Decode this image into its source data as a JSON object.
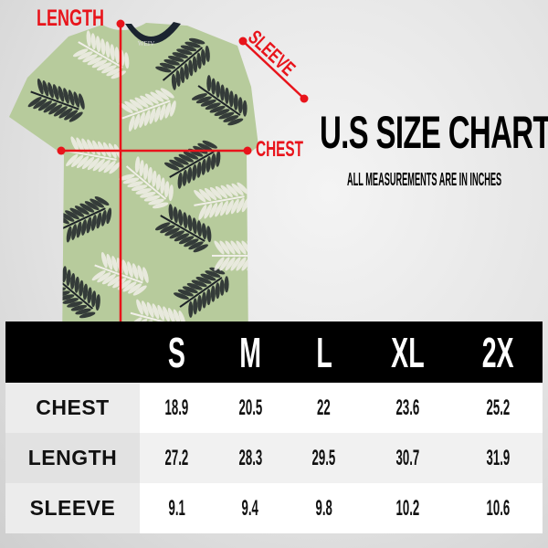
{
  "annotations": {
    "length": "LENGTH",
    "sleeve": "SLEEVE",
    "chest": "CHEST"
  },
  "shirt_tag_logo": "WEIV",
  "title": "U.S SIZE CHART",
  "subtitle": "ALL MEASUREMENTS ARE IN INCHES",
  "colors": {
    "annotation": "#e8141b",
    "shirt_green": "#b5c99a",
    "header_bg": "#000000"
  },
  "table": {
    "sizes": [
      "S",
      "M",
      "L",
      "XL",
      "2X"
    ],
    "rows": [
      {
        "label": "CHEST",
        "values": [
          "18.9",
          "20.5",
          "22",
          "23.6",
          "25.2"
        ]
      },
      {
        "label": "LENGTH",
        "values": [
          "27.2",
          "28.3",
          "29.5",
          "30.7",
          "31.9"
        ]
      },
      {
        "label": "SLEEVE",
        "values": [
          "9.1",
          "9.4",
          "9.8",
          "10.2",
          "10.6"
        ]
      }
    ]
  }
}
